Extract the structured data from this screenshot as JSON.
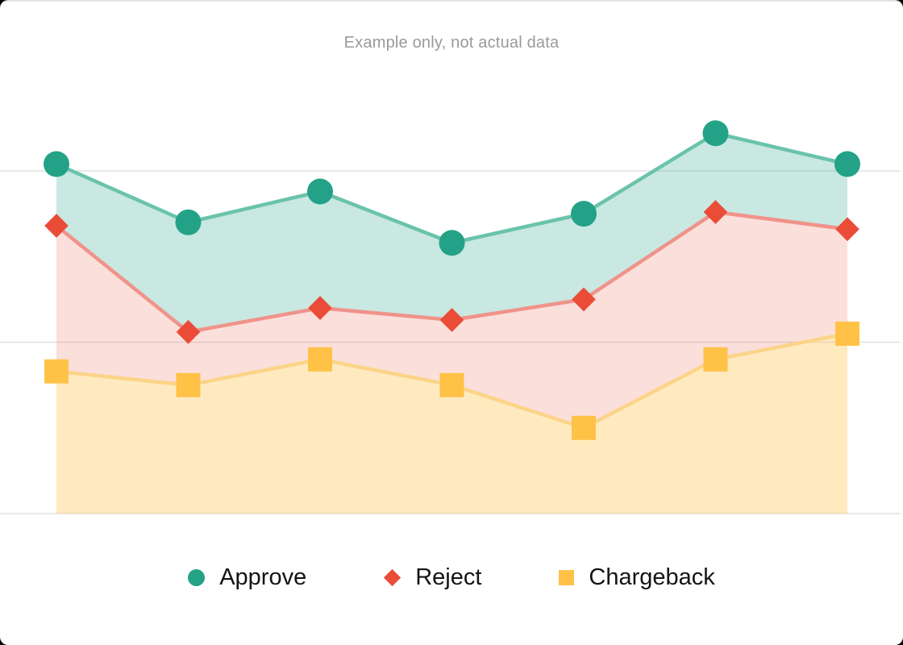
{
  "title": "Example only, not actual data",
  "title_color": "#9a9a9a",
  "chart_data": {
    "type": "area",
    "subtype": "banded-range-area-with-markers",
    "title": "Example only, not actual data",
    "x": [
      1,
      2,
      3,
      4,
      5,
      6,
      7
    ],
    "x_labels_visible": false,
    "y_labels_visible": false,
    "grid": "horizontal-only",
    "gridline_values": [
      0,
      50,
      100
    ],
    "gridline_color": "#e2e1e0",
    "ylim": [
      0,
      117
    ],
    "legend_position": "bottom",
    "series": [
      {
        "name": "Approve",
        "marker": "circle",
        "marker_color": "#23a287",
        "line_color": "#6ac3aa",
        "fill_color": "rgba(35,162,135,0.25)",
        "values": [
          102,
          85,
          94,
          79,
          87.5,
          111,
          102
        ]
      },
      {
        "name": "Reject",
        "marker": "diamond",
        "marker_color": "#ea4c38",
        "line_color": "#f0938a",
        "fill_color": "rgba(234,76,56,0.18)",
        "values": [
          84,
          53,
          60,
          56.5,
          62.5,
          88,
          83
        ]
      },
      {
        "name": "Chargeback",
        "marker": "square",
        "marker_color": "#ffc247",
        "line_color": "#fbd488",
        "fill_color": "rgba(255,194,71,0.34)",
        "values": [
          41.5,
          37.5,
          45,
          37.5,
          25,
          45,
          52.5
        ]
      }
    ]
  }
}
